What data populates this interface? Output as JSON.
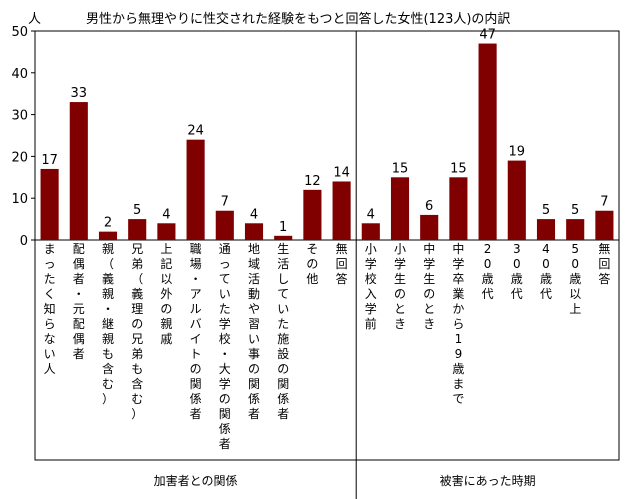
{
  "header": {
    "unit": "人",
    "title": "男性から無理やりに性交された経験をもつと回答した女性(123人)の内訳"
  },
  "chart_data": {
    "type": "bar",
    "title": "男性から無理やりに性交された経験をもつと回答した女性(123人)の内訳",
    "ylabel": "人",
    "ylim": [
      0,
      50
    ],
    "yticks": [
      0,
      10,
      20,
      30,
      40,
      50
    ],
    "grid": false,
    "bar_color": "#800000",
    "groups": [
      {
        "label": "加害者との関係",
        "categories": [
          "まったく知らない人",
          "配偶者・元配偶者",
          "親（義親・継親も含む）",
          "兄弟（義理の兄弟も含む）",
          "上記以外の親戚",
          "職場・アルバイトの関係者",
          "通っていた学校・大学の関係者",
          "地域活動や習い事の関係者",
          "生活していた施設の関係者",
          "その他",
          "無回答"
        ],
        "values": [
          17,
          33,
          2,
          5,
          4,
          24,
          7,
          4,
          1,
          12,
          14
        ]
      },
      {
        "label": "被害にあった時期",
        "categories": [
          "小学校入学前",
          "小学生のとき",
          "中学生のとき",
          "中学卒業から19歳まで",
          "20歳代",
          "30歳代",
          "40歳代",
          "50歳以上",
          "無回答"
        ],
        "values": [
          4,
          15,
          6,
          15,
          47,
          19,
          5,
          5,
          7
        ]
      }
    ]
  }
}
